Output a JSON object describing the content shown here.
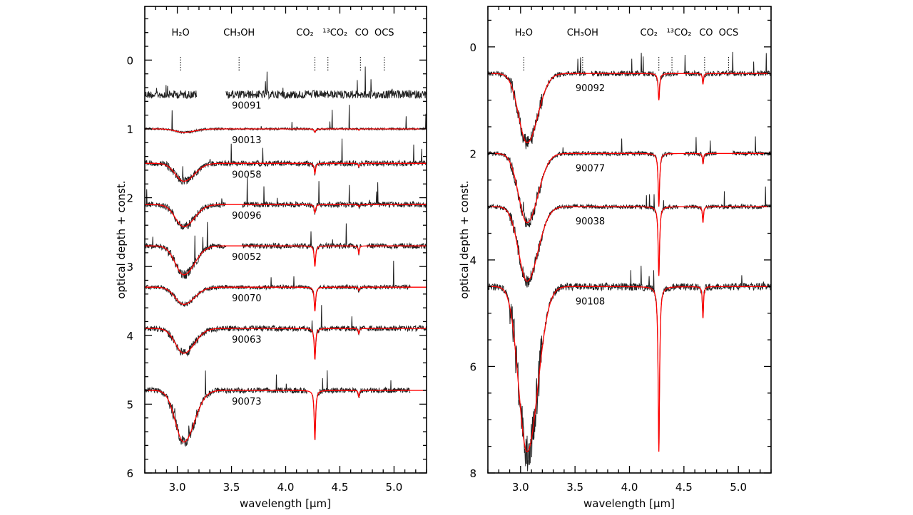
{
  "chart_data": [
    {
      "type": "line",
      "xlabel": "wavelength [µm]",
      "ylabel": "optical depth + const.",
      "xlim": [
        2.7,
        5.3
      ],
      "ylim": [
        6,
        -0.78
      ],
      "xticks": [
        "3.0",
        "3.5",
        "4.0",
        "4.5",
        "5.0"
      ],
      "yticks": [
        "0",
        "1",
        "2",
        "3",
        "4",
        "5",
        "6"
      ],
      "grid": false,
      "molecules": [
        {
          "label": "H₂O",
          "x": 3.03
        },
        {
          "label": "CH₃OH",
          "x": 3.57
        },
        {
          "label": "CO₂",
          "x": 4.27
        },
        {
          "label": "¹³CO₂",
          "x": 4.39
        },
        {
          "label": "CO",
          "x": 4.69
        },
        {
          "label": "OCS",
          "x": 4.91
        }
      ],
      "series": [
        {
          "name": "90091",
          "offset": 0.5,
          "h2o_depth": 0,
          "co2_depth": 0,
          "co_depth": 0,
          "noise": 0.06,
          "fit": false,
          "ranges": [
            [
              2.7,
              3.18
            ],
            [
              3.45,
              5.3
            ]
          ]
        },
        {
          "name": "90013",
          "offset": 1.0,
          "h2o_depth": 0.05,
          "co2_depth": 0.05,
          "co_depth": 0.02,
          "noise": 0.015,
          "fit": true,
          "ranges": [
            [
              2.7,
              5.3
            ]
          ]
        },
        {
          "name": "90058",
          "offset": 1.5,
          "h2o_depth": 0.26,
          "co2_depth": 0.15,
          "co_depth": 0.05,
          "noise": 0.04,
          "fit": true,
          "ranges": [
            [
              2.7,
              5.3
            ]
          ]
        },
        {
          "name": "90096",
          "offset": 2.1,
          "h2o_depth": 0.32,
          "co2_depth": 0.12,
          "co_depth": 0.03,
          "noise": 0.04,
          "fit": true,
          "ranges": [
            [
              2.7,
              3.45
            ],
            [
              3.6,
              5.3
            ]
          ]
        },
        {
          "name": "90052",
          "offset": 2.7,
          "h2o_depth": 0.42,
          "co2_depth": 0.3,
          "co_depth": 0.12,
          "noise": 0.04,
          "fit": true,
          "ranges": [
            [
              2.7,
              3.45
            ],
            [
              3.6,
              4.7
            ],
            [
              4.75,
              5.3
            ]
          ]
        },
        {
          "name": "90070",
          "offset": 3.3,
          "h2o_depth": 0.25,
          "co2_depth": 0.35,
          "co_depth": 0.05,
          "noise": 0.03,
          "fit": true,
          "ranges": [
            [
              2.7,
              5.15
            ]
          ]
        },
        {
          "name": "90063",
          "offset": 3.9,
          "h2o_depth": 0.36,
          "co2_depth": 0.45,
          "co_depth": 0.08,
          "noise": 0.04,
          "fit": true,
          "ranges": [
            [
              2.7,
              5.3
            ]
          ]
        },
        {
          "name": "90073",
          "offset": 4.8,
          "h2o_depth": 0.75,
          "co2_depth": 0.72,
          "co_depth": 0.1,
          "noise": 0.04,
          "fit": true,
          "ranges": [
            [
              2.7,
              4.2
            ],
            [
              4.25,
              5.15
            ]
          ]
        }
      ]
    },
    {
      "type": "line",
      "xlabel": "wavelength [µm]",
      "ylabel": "optical depth + const.",
      "xlim": [
        2.7,
        5.3
      ],
      "ylim": [
        8,
        -0.76
      ],
      "xticks": [
        "3.0",
        "3.5",
        "4.0",
        "4.5",
        "5.0"
      ],
      "yticks": [
        "0",
        "2",
        "4",
        "6",
        "8"
      ],
      "grid": false,
      "molecules": [
        {
          "label": "H₂O",
          "x": 3.03
        },
        {
          "label": "CH₃OH",
          "x": 3.57
        },
        {
          "label": "CO₂",
          "x": 4.27
        },
        {
          "label": "¹³CO₂",
          "x": 4.39
        },
        {
          "label": "CO",
          "x": 4.69
        },
        {
          "label": "OCS",
          "x": 4.91
        }
      ],
      "series": [
        {
          "name": "90092",
          "offset": 0.5,
          "h2o_depth": 1.3,
          "co2_depth": 0.5,
          "co_depth": 0.2,
          "noise": 0.05,
          "fit": true,
          "ranges": [
            [
              2.7,
              3.6
            ],
            [
              3.65,
              4.45
            ],
            [
              4.5,
              5.3
            ]
          ]
        },
        {
          "name": "90077",
          "offset": 2.0,
          "h2o_depth": 1.3,
          "co2_depth": 1.0,
          "co_depth": 0.2,
          "noise": 0.04,
          "fit": true,
          "ranges": [
            [
              2.7,
              4.4
            ],
            [
              4.5,
              4.8
            ],
            [
              4.95,
              5.3
            ]
          ]
        },
        {
          "name": "90038",
          "offset": 3.0,
          "h2o_depth": 1.4,
          "co2_depth": 1.3,
          "co_depth": 0.3,
          "noise": 0.04,
          "fit": true,
          "ranges": [
            [
              2.7,
              4.45
            ],
            [
              4.5,
              5.3
            ]
          ]
        },
        {
          "name": "90108",
          "offset": 4.5,
          "h2o_depth": 3.1,
          "co2_depth": 3.1,
          "co_depth": 0.6,
          "noise": 0.07,
          "fit": true,
          "ranges": [
            [
              2.7,
              5.3
            ]
          ]
        }
      ]
    }
  ]
}
